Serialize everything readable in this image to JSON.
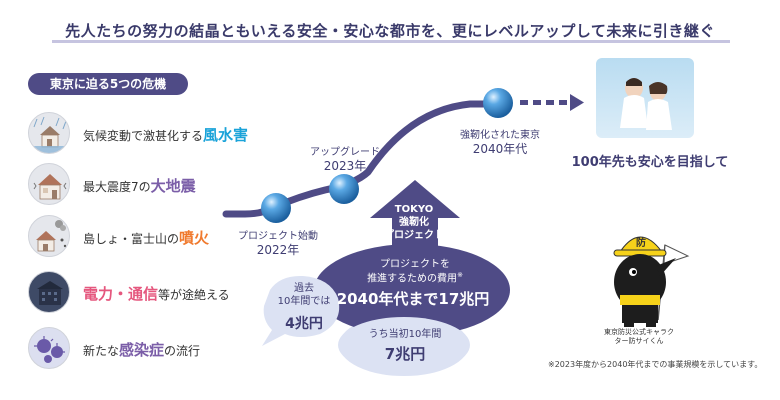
{
  "headline": "先人たちの努力の結晶ともいえる安全・安心な都市を、更にレベルアップして未来に引き継ぐ",
  "crises": {
    "heading": "東京に迫る5つの危機",
    "items": [
      {
        "icon": "flood-house-icon",
        "before": "気候変動で激甚化する",
        "highlight": "風水害",
        "after": ""
      },
      {
        "icon": "earthquake-house-icon",
        "before": "最大震度7の",
        "highlight": "大地震",
        "after": ""
      },
      {
        "icon": "volcano-house-icon",
        "before": "島しょ・富士山の",
        "highlight": "噴火",
        "after": ""
      },
      {
        "icon": "blackout-building-icon",
        "before": "",
        "highlight": "電力・通信",
        "after": "等が途絶える"
      },
      {
        "icon": "virus-icon",
        "before": "新たな",
        "highlight": "感染症",
        "after": "の流行"
      }
    ]
  },
  "roadmap": {
    "start": {
      "label": "プロジェクト始動",
      "year": "2022年"
    },
    "upgrade": {
      "label": "アップグレード",
      "year": "2023年"
    },
    "resilient": {
      "label": "強靭化された東京",
      "year": "2040年代"
    }
  },
  "future": {
    "text": "100年先も安心を目指して",
    "photo": "children-photo"
  },
  "project_arrow": {
    "line1": "TOKYO",
    "line2": "強靭化",
    "line3": "プロジェクト"
  },
  "cost": {
    "title_line1": "プロジェクトを",
    "title_line2": "推進するための費用",
    "title_mark": "※",
    "total": "2040年代まで17兆円",
    "past_label_line1": "過去",
    "past_label_line2": "10年間では",
    "past_amount": "4兆円",
    "initial_label": "うち当初10年間",
    "initial_amount": "7兆円"
  },
  "mascot": {
    "name": "bosai-saikul-mascot",
    "caption_line1": "東京防災公式キャラク",
    "caption_line2": "ター防サイくん"
  },
  "footnote": "※2023年度から2040年代までの事業規模を示しています。",
  "colors": {
    "navy": "#3f3d72",
    "bubble_light": "#dce2f3",
    "bubble_dark": "#4f4b86",
    "sphere": "#2f83c9"
  }
}
